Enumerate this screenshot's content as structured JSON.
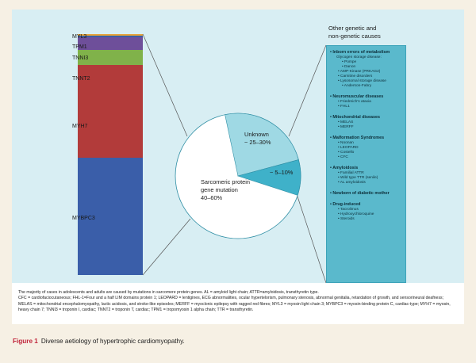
{
  "stack": [
    {
      "gene": "MYL3",
      "fraction": 0.006,
      "color": "#e8a53a"
    },
    {
      "gene": "TPM1",
      "fraction": 0.008,
      "color": "#3b5ea5"
    },
    {
      "gene": "TNNI3",
      "fraction": 0.052,
      "color": "#6e4f9a"
    },
    {
      "gene": "TNNT2",
      "fraction": 0.062,
      "color": "#80b24a"
    },
    {
      "gene": "MYH7",
      "fraction": 0.385,
      "color": "#b23b3a"
    },
    {
      "gene": "MYBPC3",
      "fraction": 0.487,
      "color": "#3a5ea9"
    }
  ],
  "pie": [
    {
      "label_line1": "Sarcomeric protein",
      "label_line2": "gene mutation",
      "label_line3": "40–60%",
      "range": [
        40,
        60
      ],
      "color": "#ffffff"
    },
    {
      "label_line1": "Unknown",
      "label_line2": "~ 25–30%",
      "range": [
        25,
        30
      ],
      "color": "#9fd9e4"
    },
    {
      "label_line1": "~ 5–10%",
      "range": [
        5,
        10
      ],
      "color": "#3fb1c9"
    }
  ],
  "other_causes": {
    "title_line1": "Other genetic and",
    "title_line2": "non-genetic causes",
    "categories": [
      {
        "name": "Inborn errors of metabolism",
        "subtitle": "Glycogen storage disease:",
        "items": [
          {
            "text": "Pompe",
            "deep": true
          },
          {
            "text": "Danon",
            "deep": true
          },
          {
            "text": "AMP-Kinase (PRKAG2)",
            "deep": false
          },
          {
            "text": "Carnitine disorders",
            "deep": false
          },
          {
            "text": "Lysosomal storage disease",
            "deep": false
          },
          {
            "text": "Anderson-Fabry",
            "deep": true
          }
        ]
      },
      {
        "name": "Neuromuscular diseases",
        "subtitle": "",
        "items": [
          {
            "text": "Friedreich's ataxia",
            "deep": false
          },
          {
            "text": "FHL1",
            "deep": false
          }
        ]
      },
      {
        "name": "Mitochondrial diseases",
        "subtitle": "",
        "items": [
          {
            "text": "MELAS",
            "deep": false
          },
          {
            "text": "MERFF",
            "deep": false
          }
        ]
      },
      {
        "name": "Malformation Syndromes",
        "subtitle": "",
        "items": [
          {
            "text": "Noonan",
            "deep": false
          },
          {
            "text": "LEOPARD",
            "deep": false
          },
          {
            "text": "Costello",
            "deep": false
          },
          {
            "text": "CFC",
            "deep": false
          }
        ]
      },
      {
        "name": "Amyloidosis",
        "subtitle": "",
        "items": [
          {
            "text": "Familial ATTR",
            "deep": false
          },
          {
            "text": "Wild type TTR (senile)",
            "deep": false
          },
          {
            "text": "AL amyloidosis",
            "deep": false
          }
        ]
      },
      {
        "name": "Newborn of diabetic mother",
        "subtitle": "",
        "items": []
      },
      {
        "name": "Drug-induced",
        "subtitle": "",
        "items": [
          {
            "text": "Tacrolimus",
            "deep": false
          },
          {
            "text": "Hydroxychloroquine",
            "deep": false
          },
          {
            "text": "Steroids",
            "deep": false
          }
        ]
      }
    ]
  },
  "caption_box": {
    "line1": "The majority of cases in adolescents and adults are caused by mutations in sarcomere protein genes. AL = amyloid light chain; ATTR=amyloidosis, transthyretin type.",
    "line2": "CFC = cardiofaciocutaneous; FHL-1=Four and a half LIM domains protein 1; LEOPARD = lentigines, ECG abnormalities, ocular hypertelorism, pulmonary stenosis, abnormal genitalia, retardation of growth, and sensorineural deafness; MELAS = mitochondrial encephalomyopathy, lactic acidosis, and stroke-like episodes; MERFF = myoclonic epilepsy with ragged red fibres; MYL3 = myosin light chain 3; MYBPC3 = myosin-binding protein C, cardiac-type; MYH7 = myosin, heavy chain 7; TNNI3 = troponin I, cardiac; TNNT2 = troponin T, cardiac; TPM1 = tropomyosin 1 alpha chain; TTR = transthyretin."
  },
  "figure_caption": {
    "label": "Figure 1",
    "text": "Diverse aetiology of hypertrophic cardiomyopathy."
  }
}
